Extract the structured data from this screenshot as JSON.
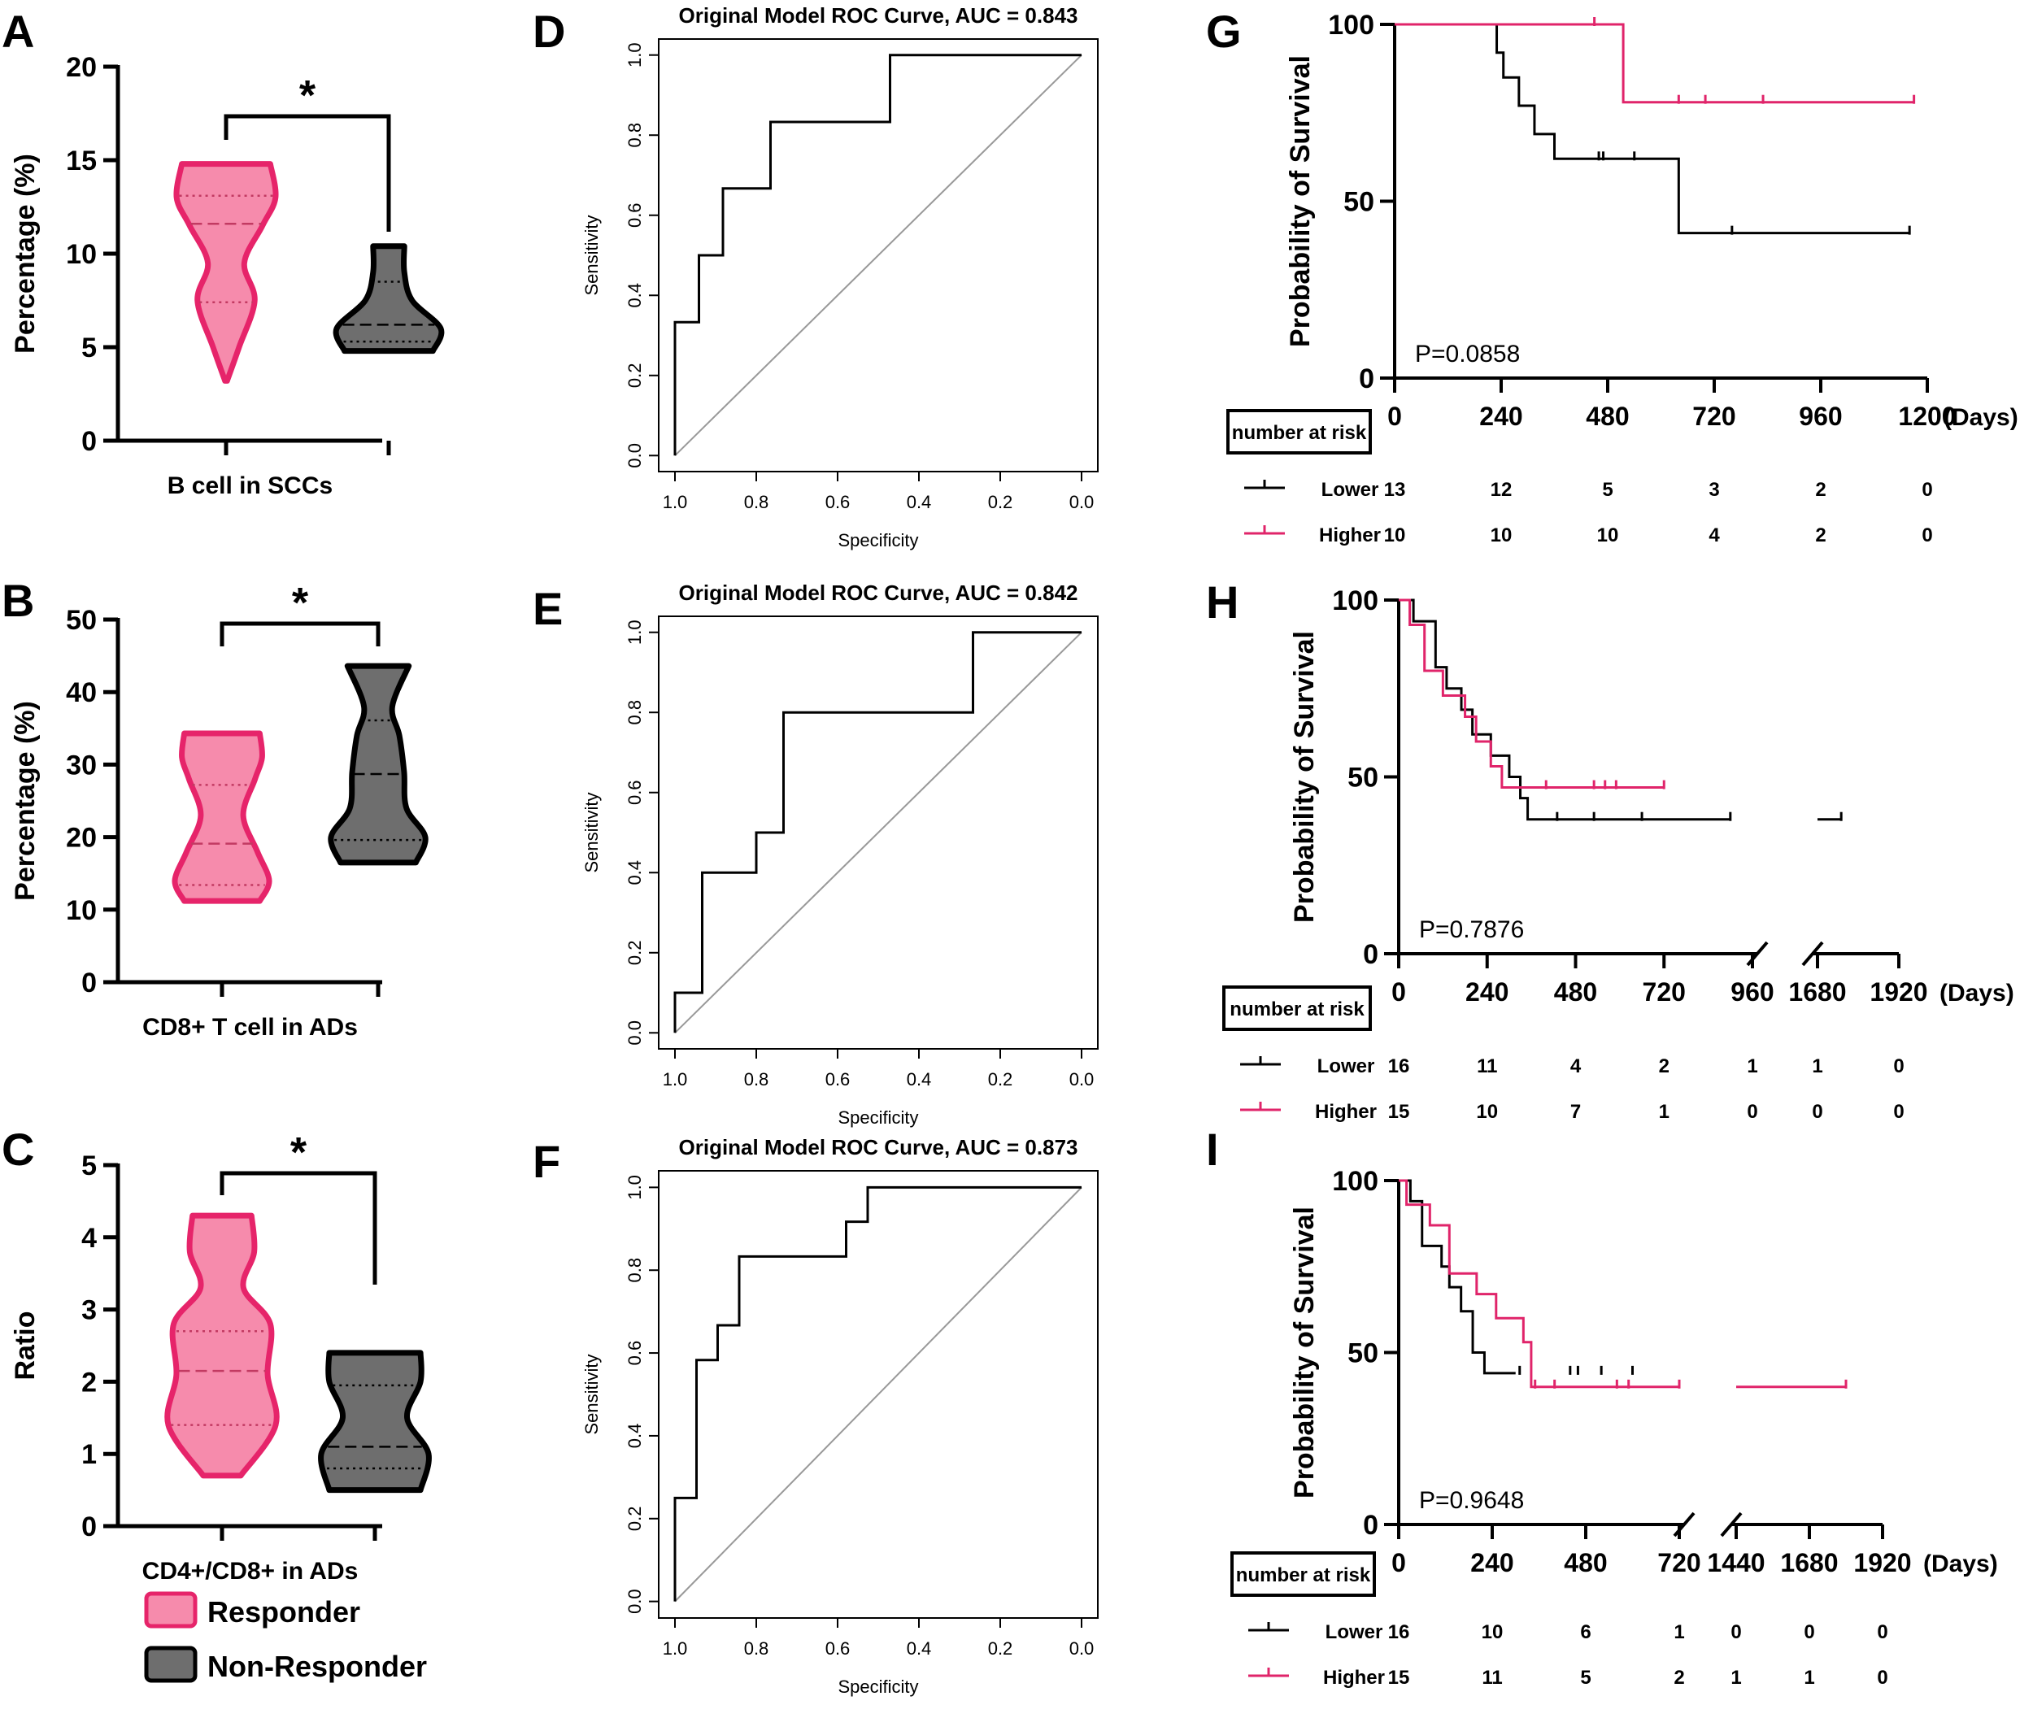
{
  "figure": {
    "colors": {
      "responder_fill": "#f68bac",
      "responder_stroke": "#e6246a",
      "nonresponder_fill": "#6e6e6e",
      "nonresponder_stroke": "#000000",
      "higher": "#e0246a",
      "lower": "#000000"
    },
    "legend": {
      "responder": "Responder",
      "non_responder": "Non-Responder"
    }
  },
  "chart_data": [
    {
      "panel": "A",
      "type": "violin",
      "xlabel": "B cell in SCCs",
      "ylabel": "Percentage (%)",
      "ylim": [
        0,
        20
      ],
      "yticks": [
        "0",
        "5",
        "10",
        "15",
        "20"
      ],
      "yvals": [
        0,
        5,
        10,
        15,
        20
      ],
      "significance": "*",
      "groups": [
        {
          "name": "Responder",
          "min": 3.2,
          "max": 14.8,
          "q1": 7.4,
          "median": 11.6,
          "q3": 13.1,
          "profile": [
            [
              3.2,
              0.02
            ],
            [
              5,
              0.25
            ],
            [
              7.5,
              0.55
            ],
            [
              9.5,
              0.35
            ],
            [
              11.5,
              0.7
            ],
            [
              13,
              0.95
            ],
            [
              14.8,
              0.85
            ]
          ]
        },
        {
          "name": "Non-Responder",
          "min": 4.8,
          "max": 10.4,
          "q1": 5.3,
          "median": 6.2,
          "q3": 8.5,
          "profile": [
            [
              4.8,
              0.85
            ],
            [
              6,
              1.0
            ],
            [
              7.5,
              0.45
            ],
            [
              9,
              0.3
            ],
            [
              10.4,
              0.3
            ]
          ]
        }
      ]
    },
    {
      "panel": "B",
      "type": "violin",
      "xlabel": "CD8+ T cell in ADs",
      "ylabel": "Percentage (%)",
      "ylim": [
        0,
        50
      ],
      "yticks": [
        "0",
        "10",
        "20",
        "30",
        "40",
        "50"
      ],
      "yvals": [
        0,
        10,
        20,
        30,
        40,
        50
      ],
      "significance": "*",
      "groups": [
        {
          "name": "Responder",
          "min": 11.2,
          "max": 34.3,
          "q1": 13.4,
          "median": 19.1,
          "q3": 27.2,
          "profile": [
            [
              11.2,
              0.8
            ],
            [
              14,
              1.0
            ],
            [
              18,
              0.75
            ],
            [
              23,
              0.45
            ],
            [
              28,
              0.7
            ],
            [
              31,
              0.85
            ],
            [
              34.3,
              0.8
            ]
          ]
        },
        {
          "name": "Non-Responder",
          "min": 16.5,
          "max": 43.6,
          "q1": 19.6,
          "median": 28.7,
          "q3": 36.1,
          "profile": [
            [
              16.5,
              0.8
            ],
            [
              20,
              1.0
            ],
            [
              24,
              0.6
            ],
            [
              29,
              0.55
            ],
            [
              34,
              0.45
            ],
            [
              38,
              0.3
            ],
            [
              43.6,
              0.65
            ]
          ]
        }
      ]
    },
    {
      "panel": "C",
      "type": "violin",
      "xlabel": "CD4+/CD8+ in ADs",
      "ylabel": "Ratio",
      "ylim": [
        0,
        5
      ],
      "yticks": [
        "0",
        "1",
        "2",
        "3",
        "4",
        "5"
      ],
      "yvals": [
        0,
        1,
        2,
        3,
        4,
        5
      ],
      "significance": "*",
      "groups": [
        {
          "name": "Responder",
          "min": 0.7,
          "max": 4.3,
          "q1": 1.4,
          "median": 2.15,
          "q3": 2.7,
          "profile": [
            [
              0.7,
              0.35
            ],
            [
              1.4,
              1.0
            ],
            [
              2.1,
              0.85
            ],
            [
              2.8,
              0.9
            ],
            [
              3.3,
              0.4
            ],
            [
              3.8,
              0.6
            ],
            [
              4.3,
              0.55
            ]
          ]
        },
        {
          "name": "Non-Responder",
          "min": 0.5,
          "max": 2.4,
          "q1": 0.8,
          "median": 1.1,
          "q3": 1.95,
          "profile": [
            [
              0.5,
              0.85
            ],
            [
              1.0,
              1.0
            ],
            [
              1.5,
              0.6
            ],
            [
              2.0,
              0.85
            ],
            [
              2.4,
              0.85
            ]
          ]
        }
      ]
    },
    {
      "panel": "D",
      "type": "line",
      "title": "Original Model ROC Curve, AUC = 0.843",
      "xlabel": "Specificity",
      "ylabel": "Sensitivity",
      "xlim": [
        1.04,
        -0.04
      ],
      "ylim": [
        -0.04,
        1.04
      ],
      "ticks": [
        "0.0",
        "0.2",
        "0.4",
        "0.6",
        "0.8",
        "1.0"
      ],
      "tickvals": [
        0,
        0.2,
        0.4,
        0.6,
        0.8,
        1.0
      ],
      "x": [
        1.0,
        1.0,
        0.941,
        0.941,
        0.882,
        0.882,
        0.765,
        0.765,
        0.471,
        0.471,
        0.0
      ],
      "y": [
        0.0,
        0.333,
        0.333,
        0.5,
        0.5,
        0.667,
        0.667,
        0.833,
        0.833,
        1.0,
        1.0
      ]
    },
    {
      "panel": "E",
      "type": "line",
      "title": "Original Model ROC Curve, AUC = 0.842",
      "xlabel": "Specificity",
      "ylabel": "Sensitivity",
      "xlim": [
        1.04,
        -0.04
      ],
      "ylim": [
        -0.04,
        1.04
      ],
      "ticks": [
        "0.0",
        "0.2",
        "0.4",
        "0.6",
        "0.8",
        "1.0"
      ],
      "tickvals": [
        0,
        0.2,
        0.4,
        0.6,
        0.8,
        1.0
      ],
      "x": [
        1.0,
        1.0,
        0.933,
        0.933,
        0.8,
        0.8,
        0.733,
        0.733,
        0.267,
        0.267,
        0.0
      ],
      "y": [
        0.0,
        0.1,
        0.1,
        0.4,
        0.4,
        0.5,
        0.5,
        0.8,
        0.8,
        1.0,
        1.0
      ]
    },
    {
      "panel": "F",
      "type": "line",
      "title": "Original Model ROC Curve, AUC = 0.873",
      "xlabel": "Specificity",
      "ylabel": "Sensitivity",
      "xlim": [
        1.04,
        -0.04
      ],
      "ylim": [
        -0.04,
        1.04
      ],
      "ticks": [
        "0.0",
        "0.2",
        "0.4",
        "0.6",
        "0.8",
        "1.0"
      ],
      "tickvals": [
        0,
        0.2,
        0.4,
        0.6,
        0.8,
        1.0
      ],
      "x": [
        1.0,
        1.0,
        0.947,
        0.947,
        0.895,
        0.895,
        0.842,
        0.842,
        0.579,
        0.579,
        0.526,
        0.526,
        0.0
      ],
      "y": [
        0.0,
        0.25,
        0.25,
        0.583,
        0.583,
        0.667,
        0.667,
        0.833,
        0.833,
        0.917,
        0.917,
        1.0,
        1.0
      ]
    },
    {
      "panel": "G",
      "type": "line",
      "ylabel": "Probability of Survival",
      "xunit": "(Days)",
      "pvalue": "P=0.0858",
      "xlim": [
        0,
        1200
      ],
      "ylim": [
        0,
        100
      ],
      "xticks": [
        "0",
        "240",
        "480",
        "720",
        "960",
        "1200"
      ],
      "xtickvals": [
        0,
        240,
        480,
        720,
        960,
        1200
      ],
      "yticks": [
        "0",
        "50",
        "100"
      ],
      "ytickvals": [
        0,
        50,
        100
      ],
      "series": [
        {
          "name": "Lower",
          "x": [
            0,
            230,
            230,
            245,
            245,
            280,
            280,
            315,
            315,
            360,
            360,
            640,
            640,
            1160
          ],
          "y": [
            100,
            100,
            92,
            92,
            85,
            85,
            77,
            77,
            69,
            69,
            62,
            62,
            41,
            41
          ],
          "censor_x": [
            460,
            470,
            540,
            760,
            1160
          ],
          "censor_y": [
            62,
            62,
            62,
            41,
            41
          ]
        },
        {
          "name": "Higher",
          "x": [
            0,
            515,
            515,
            1170
          ],
          "y": [
            100,
            100,
            78,
            78
          ],
          "censor_x": [
            450,
            640,
            700,
            830,
            1170
          ],
          "censor_y": [
            100,
            78,
            78,
            78,
            78
          ]
        }
      ],
      "risk_table": {
        "header": "number at risk",
        "rows": [
          {
            "label": "Lower",
            "values": [
              "13",
              "12",
              "5",
              "3",
              "2",
              "0"
            ]
          },
          {
            "label": "Higher",
            "values": [
              "10",
              "10",
              "10",
              "4",
              "2",
              "0"
            ]
          }
        ]
      }
    },
    {
      "panel": "H",
      "type": "line",
      "ylabel": "Probability of Survival",
      "xunit": "(Days)",
      "pvalue": "P=0.7876",
      "axis_break": [
        960,
        1680
      ],
      "xticks": [
        "0",
        "240",
        "480",
        "720",
        "960",
        "1680",
        "1920"
      ],
      "xtickvals": [
        0,
        240,
        480,
        720,
        960,
        1680,
        1920
      ],
      "yticks": [
        "0",
        "50",
        "100"
      ],
      "ytickvals": [
        0,
        50,
        100
      ],
      "series": [
        {
          "name": "Lower",
          "x": [
            0,
            40,
            40,
            100,
            100,
            130,
            130,
            170,
            170,
            200,
            200,
            250,
            250,
            300,
            300,
            330,
            330,
            350,
            350,
            900
          ],
          "y": [
            100,
            100,
            94,
            94,
            81,
            81,
            75,
            75,
            69,
            69,
            62,
            62,
            56,
            56,
            50,
            50,
            44,
            44,
            38,
            38
          ],
          "censor_x": [
            430,
            530,
            660,
            900
          ],
          "censor_y": [
            38,
            38,
            38,
            38
          ],
          "segment2_x": [
            1680,
            1750
          ],
          "segment2_y": [
            38,
            38
          ]
        },
        {
          "name": "Higher",
          "x": [
            0,
            30,
            30,
            70,
            70,
            120,
            120,
            180,
            180,
            210,
            210,
            250,
            250,
            280,
            280,
            720
          ],
          "y": [
            100,
            100,
            93,
            93,
            80,
            80,
            73,
            73,
            67,
            67,
            60,
            60,
            53,
            53,
            47,
            47
          ],
          "censor_x": [
            400,
            530,
            560,
            590,
            720
          ],
          "censor_y": [
            47,
            47,
            47,
            47,
            47
          ]
        }
      ],
      "risk_table": {
        "header": "number at risk",
        "rows": [
          {
            "label": "Lower",
            "values": [
              "16",
              "11",
              "4",
              "2",
              "1",
              "1",
              "0"
            ]
          },
          {
            "label": "Higher",
            "values": [
              "15",
              "10",
              "7",
              "1",
              "0",
              "0",
              "0"
            ]
          }
        ]
      }
    },
    {
      "panel": "I",
      "type": "line",
      "ylabel": "Probability of Survival",
      "xunit": "(Days)",
      "pvalue": "P=0.9648",
      "axis_break": [
        720,
        1440
      ],
      "xticks": [
        "0",
        "240",
        "480",
        "720",
        "1440",
        "1680",
        "1920"
      ],
      "xtickvals": [
        0,
        240,
        480,
        720,
        1440,
        1680,
        1920
      ],
      "yticks": [
        "0",
        "50",
        "100"
      ],
      "ytickvals": [
        0,
        50,
        100
      ],
      "series": [
        {
          "name": "Lower",
          "x": [
            0,
            30,
            30,
            60,
            60,
            110,
            110,
            130,
            130,
            160,
            160,
            190,
            190,
            220,
            220,
            300
          ],
          "y": [
            100,
            100,
            94,
            94,
            81,
            81,
            75,
            75,
            69,
            69,
            62,
            62,
            50,
            50,
            44,
            44
          ],
          "censor_x": [
            440,
            460,
            520,
            600,
            730
          ],
          "censor_y": [
            44,
            44,
            44,
            44,
            44
          ]
        },
        {
          "name": "Higher",
          "x": [
            0,
            20,
            20,
            80,
            80,
            130,
            130,
            200,
            200,
            250,
            250,
            320,
            320,
            340,
            340,
            720
          ],
          "y": [
            100,
            100,
            93,
            93,
            87,
            87,
            73,
            73,
            67,
            67,
            60,
            60,
            53,
            53,
            40,
            40
          ],
          "censor_x": [
            350,
            400,
            560,
            590,
            720
          ],
          "censor_y": [
            40,
            40,
            40,
            40,
            40
          ],
          "segment2_x": [
            1440,
            1800
          ],
          "segment2_y": [
            40,
            40
          ],
          "censor2_x": [
            1800
          ],
          "censor2_y": [
            40
          ]
        }
      ],
      "risk_table": {
        "header": "number at risk",
        "rows": [
          {
            "label": "Lower",
            "values": [
              "16",
              "10",
              "6",
              "1",
              "0",
              "0",
              "0"
            ]
          },
          {
            "label": "Higher",
            "values": [
              "15",
              "11",
              "5",
              "2",
              "1",
              "1",
              "0"
            ]
          }
        ]
      }
    }
  ]
}
